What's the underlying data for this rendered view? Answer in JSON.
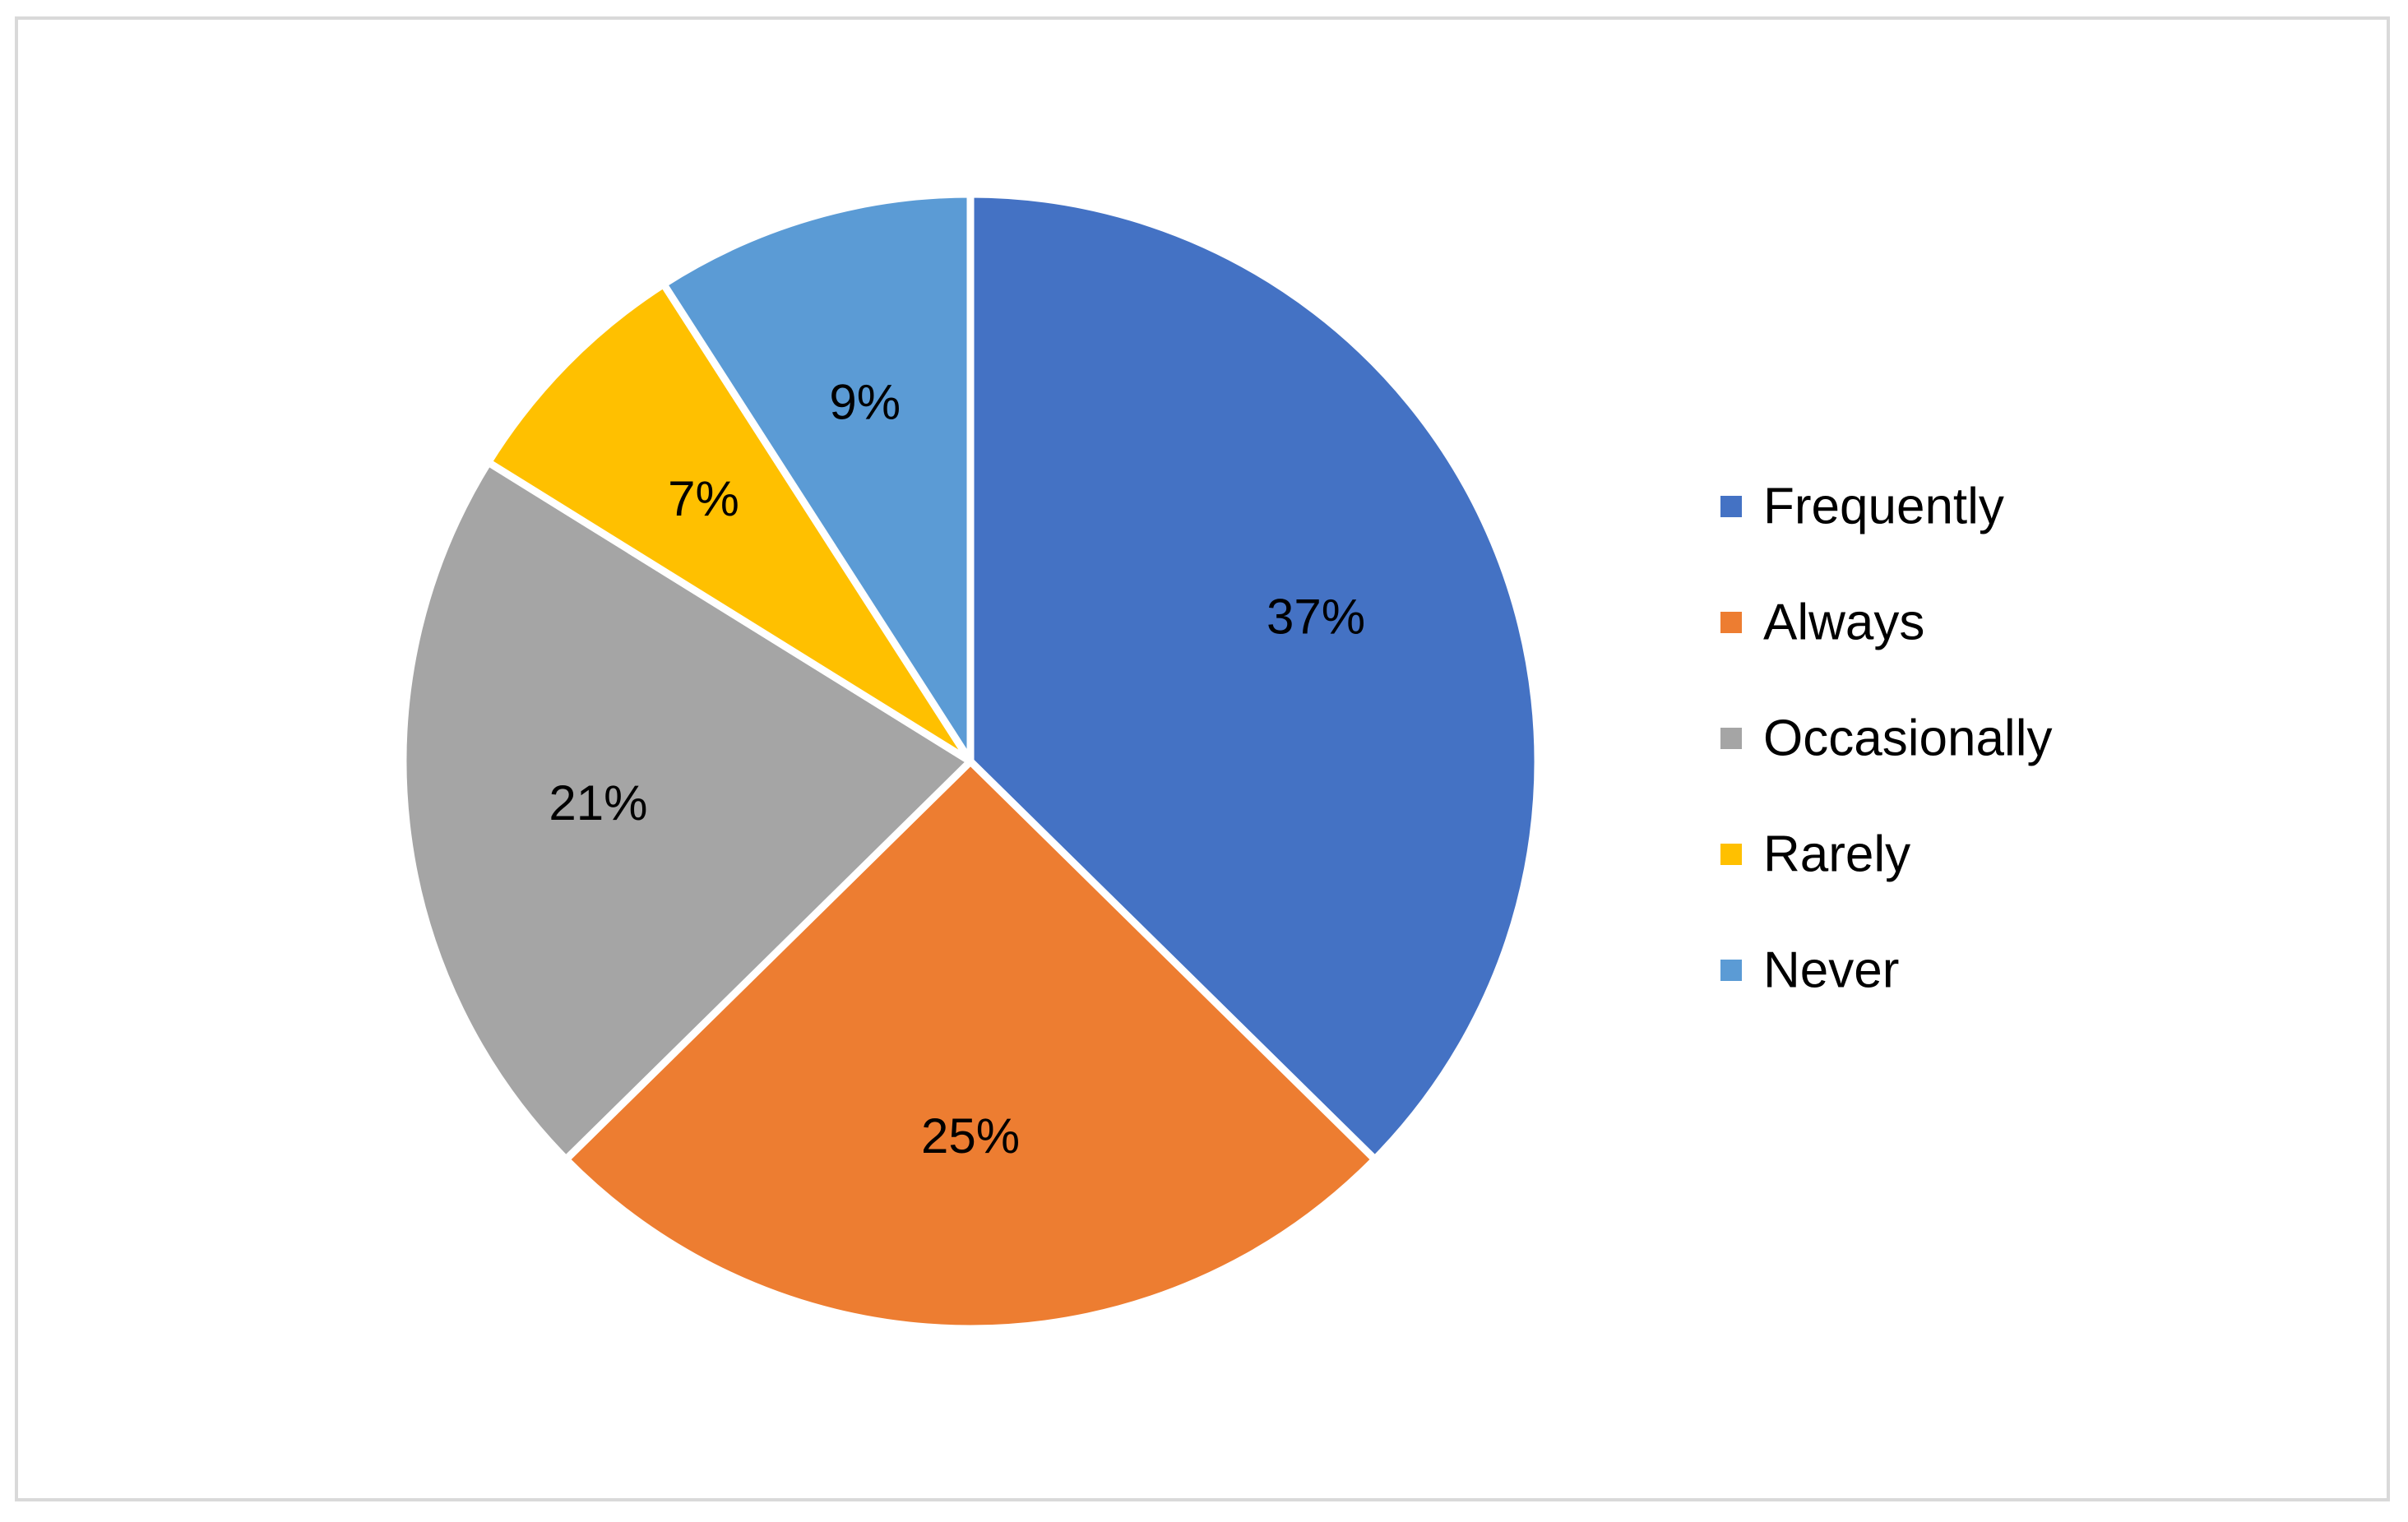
{
  "chart_data": {
    "type": "pie",
    "title": "",
    "categories": [
      "Frequently",
      "Always",
      "Occasionally",
      "Rarely",
      "Never"
    ],
    "values": [
      37,
      25,
      21,
      7,
      9
    ],
    "value_labels": [
      "37%",
      "25%",
      "21%",
      "7%",
      "9%"
    ],
    "unit": "%",
    "colors": [
      "#4472C4",
      "#ED7D31",
      "#A5A5A5",
      "#FFC000",
      "#5B9BD5"
    ],
    "start_angle": "12 o'clock",
    "direction": "clockwise",
    "legend": {
      "placement": "right",
      "entries": [
        "Frequently",
        "Always",
        "Occasionally",
        "Rarely",
        "Never"
      ]
    }
  }
}
